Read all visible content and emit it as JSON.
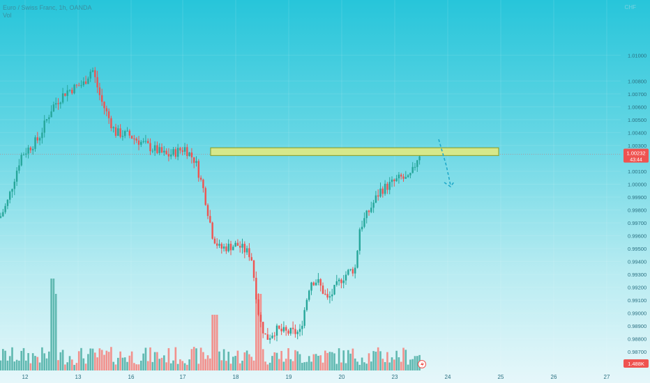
{
  "header": {
    "title": "Euro / Swiss Franc, 1h, OANDA",
    "vol_label": "Vol",
    "currency": "CHF"
  },
  "price_badge": {
    "price": "1.00232",
    "countdown": "43:44"
  },
  "volume_badge": "1.488K",
  "colors": {
    "up": "#26a69a",
    "down": "#ef5350",
    "up_vol": "#5fb8b0",
    "down_vol": "#f2908c",
    "zone_fill": "#d6e88a",
    "zone_stroke": "#8a9a1e",
    "arrow": "#1ea8c8"
  },
  "chart_data": {
    "type": "candlestick",
    "title": "Euro / Swiss Franc, 1h, OANDA",
    "x_ticks": [
      "12",
      "13",
      "16",
      "17",
      "18",
      "19",
      "20",
      "23",
      "24",
      "25",
      "26",
      "27"
    ],
    "y_ticks": [
      "1.01000",
      "1.00800",
      "1.00700",
      "1.00600",
      "1.00500",
      "1.00400",
      "1.00300",
      "1.00100",
      "1.00000",
      "0.99900",
      "0.99800",
      "0.99700",
      "0.99600",
      "0.99500",
      "0.99400",
      "0.99300",
      "0.99200",
      "0.99100",
      "0.99000",
      "0.98900",
      "0.98800",
      "0.98700"
    ],
    "ylim": [
      0.9862,
      1.0132
    ],
    "current_price": 1.00232,
    "resistance_zone": {
      "from": 1.00222,
      "to": 1.00282
    },
    "projection": "down",
    "series": [
      {
        "name": "close",
        "x": [
          "12",
          "13",
          "16",
          "17",
          "18",
          "19",
          "20",
          "23"
        ],
        "values": [
          0.999,
          1.007,
          1.003,
          1.002,
          0.995,
          0.9885,
          0.993,
          1.0023
        ]
      }
    ]
  }
}
